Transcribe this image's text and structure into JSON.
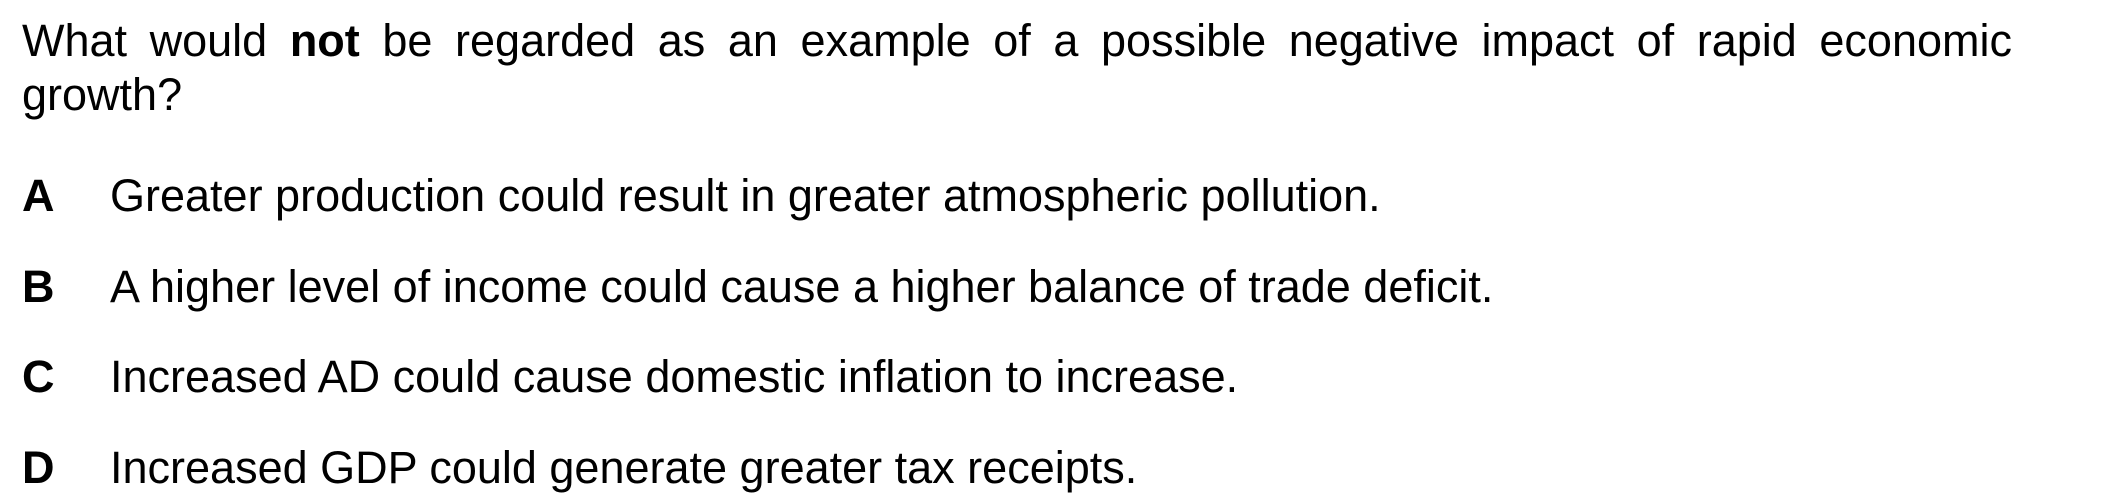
{
  "question": {
    "prefix": "What would ",
    "emphasis": "not",
    "suffix": " be regarded as an example of a possible negative impact of rapid economic growth?"
  },
  "options": [
    {
      "letter": "A",
      "text": "Greater production could result in greater atmospheric pollution."
    },
    {
      "letter": "B",
      "text": "A higher level of income could cause a higher balance of trade deficit."
    },
    {
      "letter": "C",
      "text": "Increased AD could cause domestic inflation to increase."
    },
    {
      "letter": "D",
      "text": "Increased GDP could generate greater tax receipts."
    }
  ]
}
